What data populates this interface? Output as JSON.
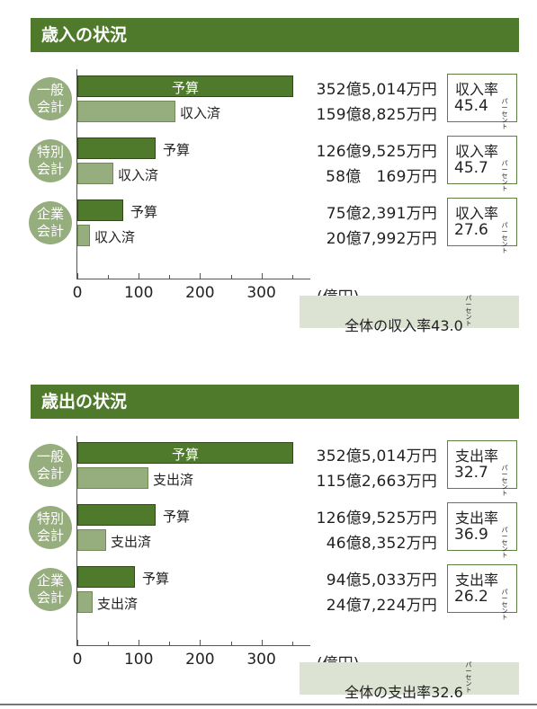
{
  "colors": {
    "header": "#4f7a2c",
    "budget_bar": "#4f7a2c",
    "actual_bar": "#96ad7e",
    "circle": "#96ad7e",
    "summary_bg": "#dde3d2"
  },
  "unit": "(億円)",
  "axis_ticks": [
    "0",
    "100",
    "200",
    "300"
  ],
  "pct_unit": "パーセント",
  "sections": [
    {
      "title": "歳入の状況",
      "summary": {
        "label": "全体の収入率43.0",
        "unit": "パーセント"
      },
      "groups": [
        {
          "circle_l1": "一般",
          "circle_l2": "会計",
          "budget_label": "予算",
          "actual_label": "収入済",
          "budget_amount": "352億5,014万円",
          "actual_amount": "159億8,825万円",
          "rate_title": "収入率",
          "rate_value": "45.4"
        },
        {
          "circle_l1": "特別",
          "circle_l2": "会計",
          "budget_label": "予算",
          "actual_label": "収入済",
          "budget_amount": "126億9,525万円",
          "actual_amount": "58億　169万円",
          "rate_title": "収入率",
          "rate_value": "45.7"
        },
        {
          "circle_l1": "企業",
          "circle_l2": "会計",
          "budget_label": "予算",
          "actual_label": "収入済",
          "budget_amount": "75億2,391万円",
          "actual_amount": "20億7,992万円",
          "rate_title": "収入率",
          "rate_value": "27.6"
        }
      ]
    },
    {
      "title": "歳出の状況",
      "summary": {
        "label": "全体の支出率32.6",
        "unit": "パーセント"
      },
      "groups": [
        {
          "circle_l1": "一般",
          "circle_l2": "会計",
          "budget_label": "予算",
          "actual_label": "支出済",
          "budget_amount": "352億5,014万円",
          "actual_amount": "115億2,663万円",
          "rate_title": "支出率",
          "rate_value": "32.7"
        },
        {
          "circle_l1": "特別",
          "circle_l2": "会計",
          "budget_label": "予算",
          "actual_label": "支出済",
          "budget_amount": "126億9,525万円",
          "actual_amount": "46億8,352万円",
          "rate_title": "支出率",
          "rate_value": "36.9"
        },
        {
          "circle_l1": "企業",
          "circle_l2": "会計",
          "budget_label": "予算",
          "actual_label": "支出済",
          "budget_amount": "94億5,033万円",
          "actual_amount": "24億7,224万円",
          "rate_title": "支出率",
          "rate_value": "26.2"
        }
      ]
    }
  ],
  "chart_data": [
    {
      "type": "bar",
      "orientation": "horizontal",
      "title": "歳入の状況",
      "categories": [
        "一般会計",
        "特別会計",
        "企業会計"
      ],
      "series": [
        {
          "name": "予算",
          "values": [
            352.5014,
            126.9525,
            75.2391
          ]
        },
        {
          "name": "収入済",
          "values": [
            159.8825,
            58.0169,
            20.7992
          ]
        }
      ],
      "xlabel": "(億円)",
      "xlim": [
        0,
        350
      ],
      "xticks": [
        0,
        100,
        200,
        300
      ],
      "grid": false
    },
    {
      "type": "bar",
      "orientation": "horizontal",
      "title": "歳出の状況",
      "categories": [
        "一般会計",
        "特別会計",
        "企業会計"
      ],
      "series": [
        {
          "name": "予算",
          "values": [
            352.5014,
            126.9525,
            94.5033
          ]
        },
        {
          "name": "支出済",
          "values": [
            115.2663,
            46.8352,
            24.7224
          ]
        }
      ],
      "xlabel": "(億円)",
      "xlim": [
        0,
        350
      ],
      "xticks": [
        0,
        100,
        200,
        300
      ],
      "grid": false
    }
  ]
}
